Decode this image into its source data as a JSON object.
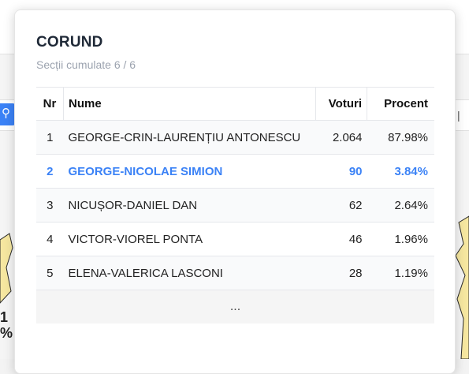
{
  "modal": {
    "title": "CORUND",
    "subtitle": "Secții cumulate 6 / 6"
  },
  "table": {
    "headers": {
      "nr": "Nr",
      "name": "Nume",
      "votes": "Voturi",
      "percent": "Procent"
    },
    "rows": [
      {
        "nr": "1",
        "name": "GEORGE-CRIN-LAURENȚIU ANTONESCU",
        "votes": "2.064",
        "percent": "87.98%"
      },
      {
        "nr": "2",
        "name": "GEORGE-NICOLAE SIMION",
        "votes": "90",
        "percent": "3.84%"
      },
      {
        "nr": "3",
        "name": "NICUȘOR-DANIEL DAN",
        "votes": "62",
        "percent": "2.64%"
      },
      {
        "nr": "4",
        "name": "VICTOR-VIOREL PONTA",
        "votes": "46",
        "percent": "1.96%"
      },
      {
        "nr": "5",
        "name": "ELENA-VALERICA LASCONI",
        "votes": "28",
        "percent": "1.19%"
      }
    ],
    "more_label": "...",
    "highlight_color": "#3b82f6"
  },
  "background": {
    "left_text_line1": "1",
    "left_text_line2": "%",
    "map_fill": "#f6e7a0",
    "map_stroke": "#2a2a2a"
  },
  "icons": {
    "user_icon": "user-icon",
    "panel_edge_icon": "edge-mark"
  }
}
